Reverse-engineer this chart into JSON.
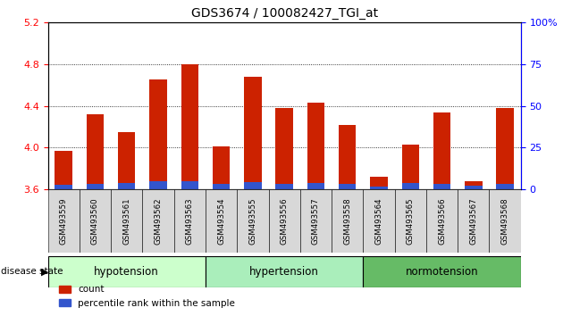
{
  "title": "GDS3674 / 100082427_TGI_at",
  "samples": [
    "GSM493559",
    "GSM493560",
    "GSM493561",
    "GSM493562",
    "GSM493563",
    "GSM493554",
    "GSM493555",
    "GSM493556",
    "GSM493557",
    "GSM493558",
    "GSM493564",
    "GSM493565",
    "GSM493566",
    "GSM493567",
    "GSM493568"
  ],
  "groups": [
    {
      "name": "hypotension",
      "indices": [
        0,
        1,
        2,
        3,
        4
      ],
      "color": "#ccffcc"
    },
    {
      "name": "hypertension",
      "indices": [
        5,
        6,
        7,
        8,
        9
      ],
      "color": "#99ee99"
    },
    {
      "name": "normotension",
      "indices": [
        10,
        11,
        12,
        13,
        14
      ],
      "color": "#55bb55"
    }
  ],
  "count_values": [
    3.97,
    4.32,
    4.15,
    4.65,
    4.8,
    4.01,
    4.68,
    4.38,
    4.43,
    4.22,
    3.72,
    4.03,
    4.34,
    3.68,
    4.38
  ],
  "percentile_values": [
    3.0,
    3.5,
    4.0,
    5.0,
    5.0,
    3.5,
    4.5,
    3.5,
    4.0,
    3.5,
    2.0,
    4.0,
    3.5,
    2.5,
    3.5
  ],
  "ymin": 3.6,
  "ymax": 5.2,
  "yticks_left": [
    3.6,
    4.0,
    4.4,
    4.8,
    5.2
  ],
  "yticks_right": [
    0,
    25,
    50,
    75,
    100
  ],
  "bar_color_red": "#cc2200",
  "bar_color_blue": "#3355cc",
  "bar_width": 0.55,
  "grid_color": "black",
  "bg_plot": "#ffffff",
  "bg_label": "#d8d8d8",
  "title_fontsize": 10,
  "legend_count": "count",
  "legend_pct": "percentile rank within the sample",
  "disease_state_label": "disease state"
}
